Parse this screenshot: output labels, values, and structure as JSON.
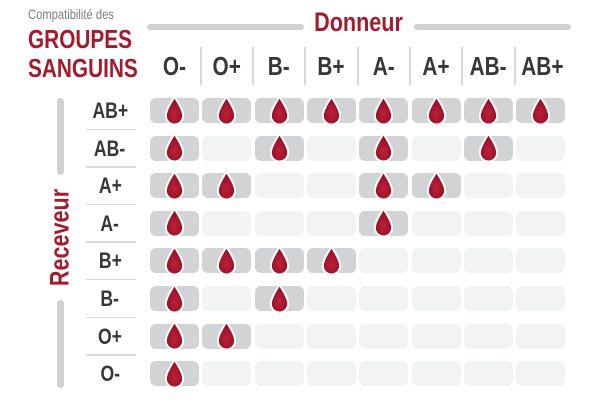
{
  "title": {
    "eyebrow": "Compatibilité des",
    "line1": "GROUPES",
    "line2": "SANGUINS"
  },
  "axes": {
    "donor": "Donneur",
    "receiver": "Receveur"
  },
  "donors": [
    "O-",
    "O+",
    "B-",
    "B+",
    "A-",
    "A+",
    "AB-",
    "AB+"
  ],
  "receivers": [
    "AB+",
    "AB-",
    "A+",
    "A-",
    "B+",
    "B-",
    "O+",
    "O-"
  ],
  "matrix": [
    [
      1,
      1,
      1,
      1,
      1,
      1,
      1,
      1
    ],
    [
      1,
      0,
      1,
      0,
      1,
      0,
      1,
      0
    ],
    [
      1,
      1,
      0,
      0,
      1,
      1,
      0,
      0
    ],
    [
      1,
      0,
      0,
      0,
      1,
      0,
      0,
      0
    ],
    [
      1,
      1,
      1,
      1,
      0,
      0,
      0,
      0
    ],
    [
      1,
      0,
      1,
      0,
      0,
      0,
      0,
      0
    ],
    [
      1,
      1,
      0,
      0,
      0,
      0,
      0,
      0
    ],
    [
      1,
      0,
      0,
      0,
      0,
      0,
      0,
      0
    ]
  ],
  "icons": {
    "compatible": "blood-drop-icon"
  },
  "colors": {
    "accent_red": "#a41b2e",
    "title_gray": "#7d7f82",
    "label_dark": "#363739",
    "cell_compatible": "#d1d3d4",
    "cell_incompatible": "#f2f3f3",
    "separator": "#d8d9da",
    "axis_bar": "#cfd1d3",
    "drop_center": "#bd2138",
    "drop_edge": "#8a0e24"
  }
}
